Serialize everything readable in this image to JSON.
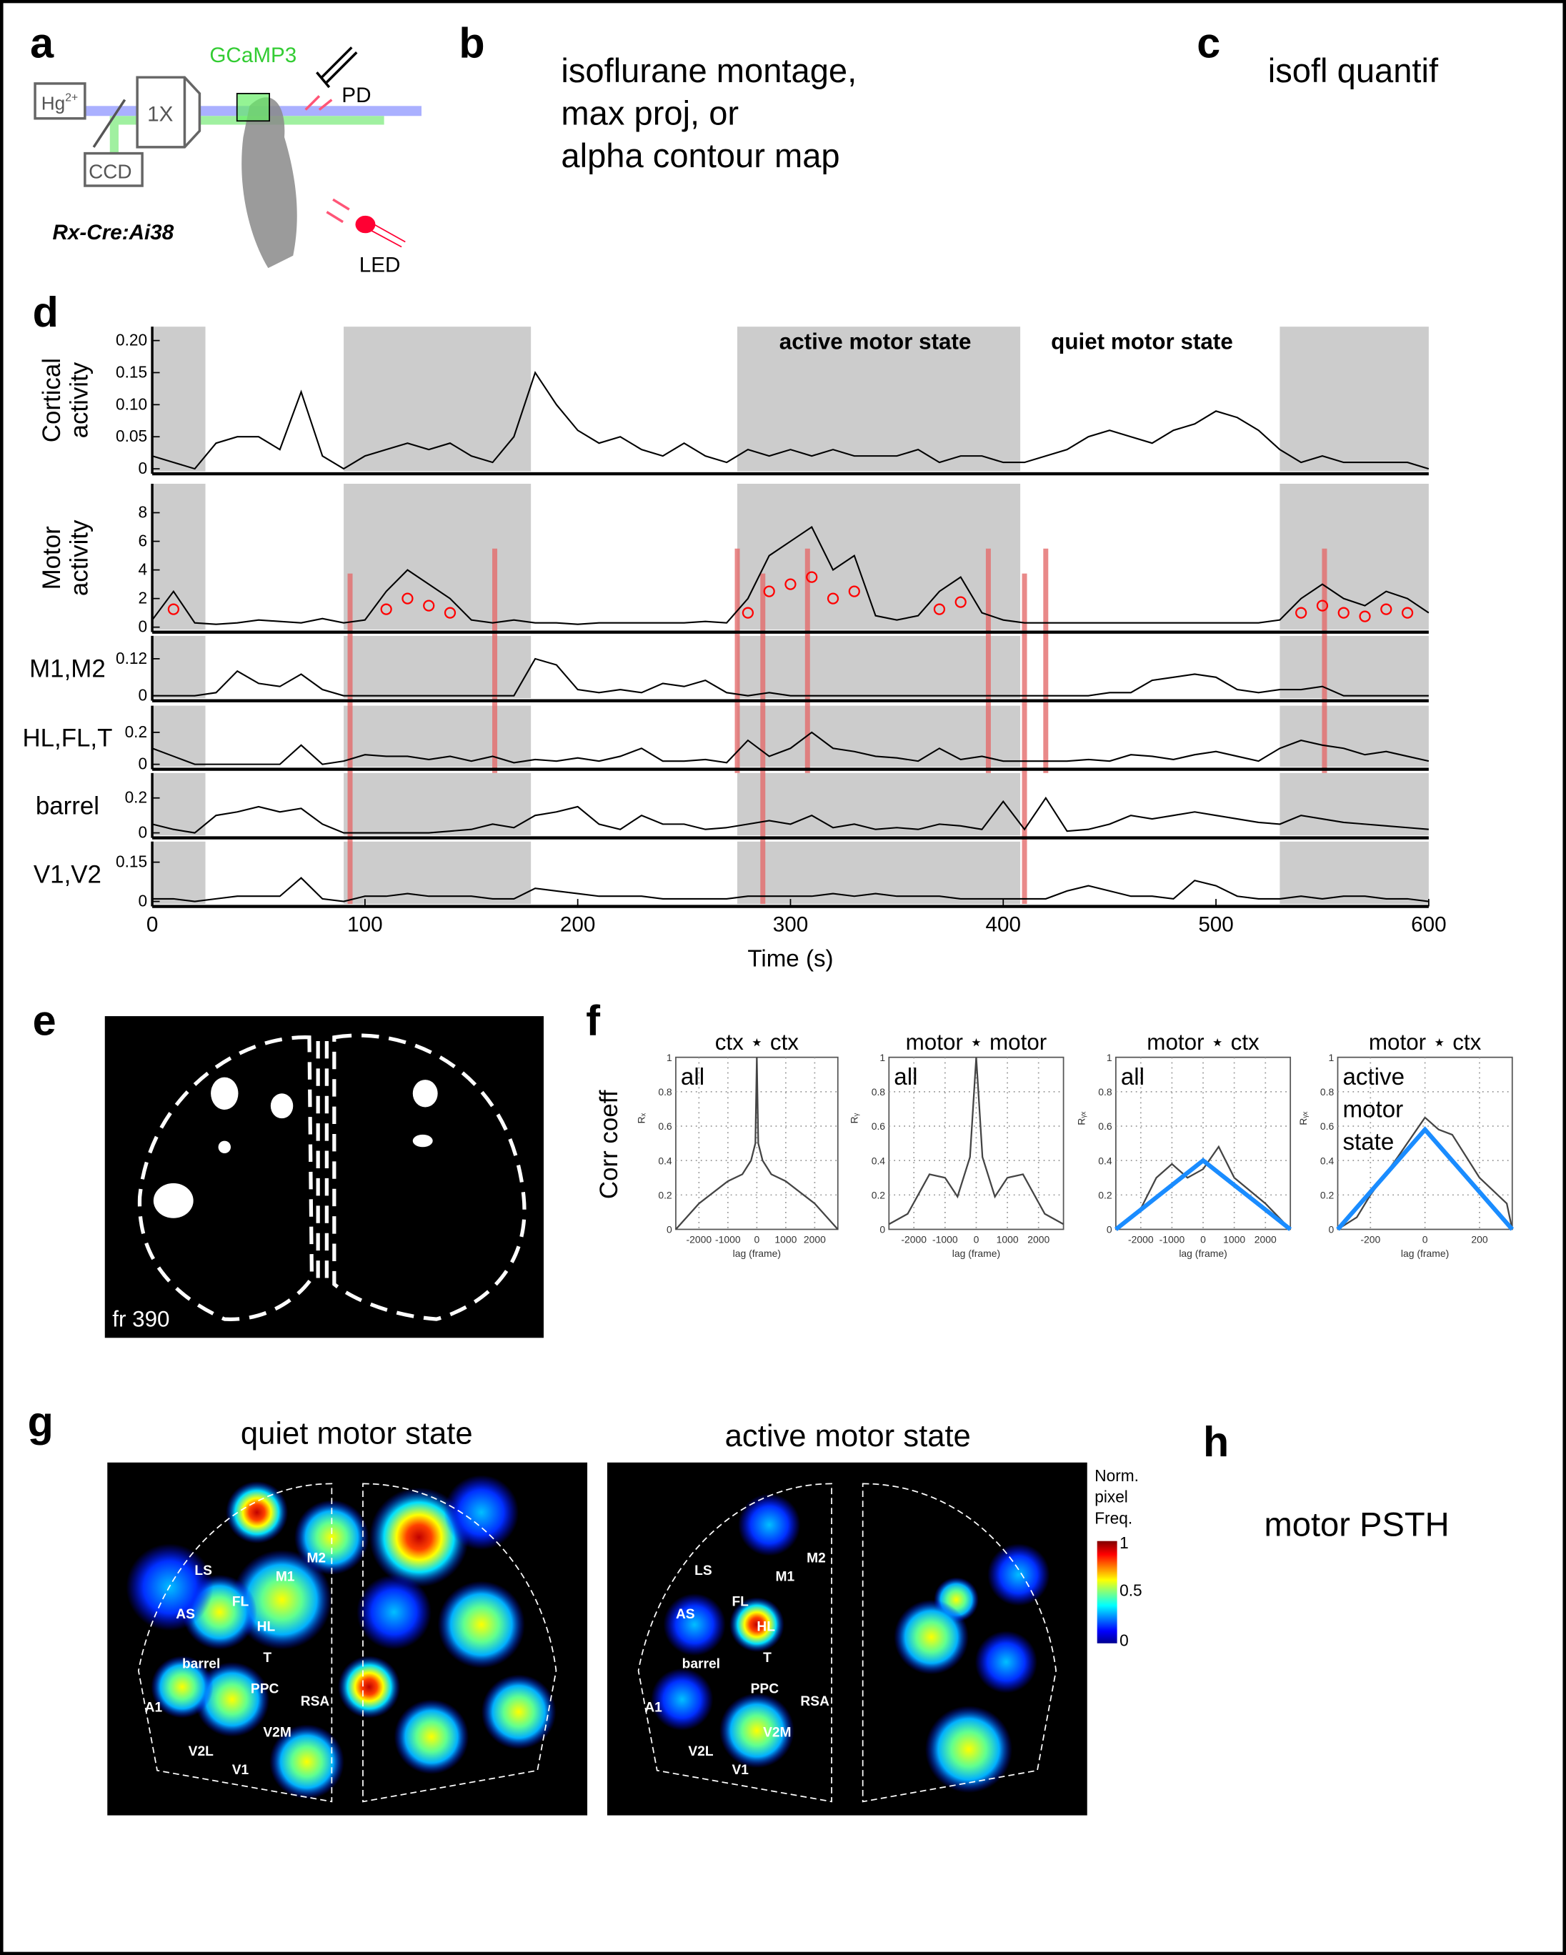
{
  "panel_labels": {
    "a": "a",
    "b": "b",
    "c": "c",
    "d": "d",
    "e": "e",
    "f": "f",
    "g": "g",
    "h": "h"
  },
  "panel_a": {
    "hg": "Hg",
    "hg_sup": "2+",
    "objective": "1X",
    "camera": "CCD",
    "indicator": "GCaMP3",
    "detector": "PD",
    "led": "LED",
    "strain": "Rx-Cre:Ai38",
    "colors": {
      "indicator": "#33cc33",
      "arrows": "#ff5577",
      "led": "#ff0033",
      "blue_beam": "#aab0ff",
      "green_beam": "#a0f0a0"
    }
  },
  "panel_b": {
    "lines": [
      "isoflurane montage,",
      "max proj, or",
      "alpha contour map"
    ]
  },
  "panel_c": {
    "text": "isofl quantif"
  },
  "panel_h": {
    "text": "motor PSTH"
  },
  "chart_data": [
    {
      "type": "line",
      "panel": "d",
      "xlabel": "Time (s)",
      "xlim": [
        0,
        600
      ],
      "xticks": [
        "0",
        "100",
        "200",
        "300",
        "400",
        "500",
        "600"
      ],
      "x_step": 10,
      "annotations": [
        "active motor state",
        "quiet motor state"
      ],
      "shaded_intervals": [
        [
          0,
          25
        ],
        [
          90,
          178
        ],
        [
          275,
          408
        ],
        [
          530,
          600
        ]
      ],
      "event_markers_s": [
        93,
        161,
        275,
        287,
        308,
        393,
        410,
        420,
        551
      ],
      "colors": {
        "shade": "#cccccc",
        "trace": "#000000",
        "events": "#e36b6b",
        "motor_onsets": "#ff0000"
      },
      "series": [
        {
          "name": "Cortical activity",
          "ylabel": [
            "Cortical",
            "activity"
          ],
          "ylim": [
            0,
            0.21
          ],
          "yticks": [
            "0",
            "0.05",
            "0.10",
            "0.15",
            "0.20"
          ],
          "ytick_values": [
            0,
            0.05,
            0.1,
            0.15,
            0.2
          ],
          "values": [
            0.02,
            0.01,
            0,
            0.04,
            0.05,
            0.05,
            0.03,
            0.12,
            0.02,
            0,
            0.02,
            0.03,
            0.04,
            0.03,
            0.04,
            0.02,
            0.01,
            0.05,
            0.15,
            0.1,
            0.06,
            0.04,
            0.05,
            0.03,
            0.02,
            0.04,
            0.02,
            0.01,
            0.03,
            0.02,
            0.03,
            0.02,
            0.03,
            0.02,
            0.02,
            0.02,
            0.03,
            0.01,
            0.02,
            0.02,
            0.01,
            0.01,
            0.02,
            0.03,
            0.05,
            0.06,
            0.05,
            0.04,
            0.06,
            0.07,
            0.09,
            0.08,
            0.06,
            0.03,
            0.01,
            0.02,
            0.01,
            0.01,
            0.01,
            0.01,
            0
          ]
        },
        {
          "name": "Motor activity",
          "ylabel": [
            "Motor",
            "activity"
          ],
          "ylim": [
            0,
            9.5
          ],
          "yticks": [
            "0",
            "2",
            "4",
            "6",
            "8"
          ],
          "ytick_values": [
            0,
            2,
            4,
            6,
            8
          ],
          "values": [
            0.5,
            2.5,
            0.3,
            0.2,
            0.3,
            0.5,
            0.4,
            0.3,
            0.6,
            0.3,
            0.5,
            2.5,
            4,
            3,
            2,
            0.5,
            0.3,
            0.5,
            0.3,
            0.3,
            0.2,
            0.3,
            0.3,
            0.3,
            0.3,
            0.3,
            0.4,
            0.3,
            2,
            5,
            6,
            7,
            4,
            5,
            0.8,
            0.5,
            0.8,
            2.5,
            3.5,
            1,
            0.5,
            0.3,
            0.3,
            0.3,
            0.3,
            0.3,
            0.3,
            0.3,
            0.3,
            0.3,
            0.3,
            0.3,
            0.3,
            0.5,
            2,
            3,
            2,
            1.5,
            2.5,
            2,
            1
          ]
        },
        {
          "name": "M1,M2",
          "ylabel": [
            "M1,M2"
          ],
          "ylim": [
            0,
            0.17
          ],
          "yticks": [
            "0",
            "0.12"
          ],
          "ytick_values": [
            0,
            0.12
          ],
          "values": [
            0,
            0,
            0,
            0.01,
            0.08,
            0.04,
            0.03,
            0.07,
            0.02,
            0,
            0,
            0,
            0,
            0,
            0,
            0,
            0,
            0,
            0.12,
            0.1,
            0.02,
            0.01,
            0.02,
            0.01,
            0.04,
            0.03,
            0.05,
            0.01,
            0,
            0.01,
            0,
            0,
            0,
            0,
            0,
            0,
            0,
            0,
            0,
            0,
            0,
            0,
            0,
            0,
            0,
            0.01,
            0.01,
            0.05,
            0.06,
            0.07,
            0.06,
            0.02,
            0.01,
            0.02,
            0.02,
            0.03,
            0,
            0,
            0,
            0,
            0
          ]
        },
        {
          "name": "HL,FL,T",
          "ylabel": [
            "HL,FL,T"
          ],
          "ylim": [
            0,
            0.32
          ],
          "yticks": [
            "0",
            "0.2"
          ],
          "ytick_values": [
            0,
            0.2
          ],
          "values": [
            0.1,
            0.05,
            0,
            0,
            0,
            0,
            0,
            0.12,
            0,
            0.02,
            0.06,
            0.05,
            0.05,
            0.03,
            0.05,
            0.02,
            0.05,
            0.01,
            0.03,
            0.02,
            0.04,
            0.02,
            0.05,
            0.1,
            0.02,
            0.02,
            0.03,
            0.01,
            0.15,
            0.05,
            0.1,
            0.2,
            0.1,
            0.08,
            0.05,
            0.04,
            0.02,
            0.1,
            0.03,
            0.05,
            0.02,
            0.02,
            0.02,
            0.02,
            0.03,
            0.02,
            0.06,
            0.05,
            0.03,
            0.06,
            0.08,
            0.05,
            0.02,
            0.1,
            0.15,
            0.12,
            0.1,
            0.06,
            0.08,
            0.05,
            0.02
          ]
        },
        {
          "name": "barrel",
          "ylabel": [
            "barrel"
          ],
          "ylim": [
            0,
            0.3
          ],
          "yticks": [
            "0",
            "0.2"
          ],
          "ytick_values": [
            0,
            0.2
          ],
          "values": [
            0.05,
            0.02,
            0,
            0.1,
            0.12,
            0.15,
            0.12,
            0.14,
            0.05,
            0,
            0,
            0,
            0,
            0,
            0.01,
            0.02,
            0.05,
            0.03,
            0.1,
            0.12,
            0.15,
            0.05,
            0.02,
            0.1,
            0.05,
            0.05,
            0.02,
            0.03,
            0.05,
            0.07,
            0.05,
            0.1,
            0.03,
            0.05,
            0.02,
            0.03,
            0.02,
            0.05,
            0.04,
            0.02,
            0.18,
            0.02,
            0.2,
            0.01,
            0.02,
            0.05,
            0.1,
            0.08,
            0.1,
            0.12,
            0.1,
            0.08,
            0.06,
            0.05,
            0.1,
            0.08,
            0.06,
            0.05,
            0.04,
            0.03,
            0.02
          ]
        },
        {
          "name": "V1,V2",
          "ylabel": [
            "V1,V2"
          ],
          "ylim": [
            0,
            0.2
          ],
          "yticks": [
            "0",
            "0.15"
          ],
          "ytick_values": [
            0,
            0.15
          ],
          "values": [
            0.01,
            0.01,
            0,
            0.01,
            0.02,
            0.02,
            0.02,
            0.09,
            0.01,
            0,
            0.02,
            0.02,
            0.03,
            0.02,
            0.02,
            0.02,
            0.01,
            0.01,
            0.05,
            0.04,
            0.03,
            0.02,
            0.02,
            0.02,
            0.01,
            0.01,
            0.01,
            0.01,
            0.02,
            0.02,
            0.02,
            0.02,
            0.03,
            0.02,
            0.03,
            0.02,
            0.02,
            0.02,
            0.01,
            0.01,
            0.01,
            0.01,
            0.01,
            0.04,
            0.06,
            0.04,
            0.02,
            0.02,
            0.01,
            0.08,
            0.06,
            0.02,
            0.01,
            0.01,
            0.02,
            0.01,
            0.02,
            0.02,
            0.01,
            0.01,
            0
          ]
        }
      ]
    },
    {
      "type": "line",
      "panel": "f",
      "ylabel": "Corr coeff",
      "ylim": [
        0,
        1
      ],
      "yticks": [
        "0",
        "0.2",
        "0.4",
        "0.6",
        "0.8",
        "1"
      ],
      "grid": true,
      "colors": {
        "observed": "#444444",
        "fit": "#1a8cff"
      },
      "subplots": [
        {
          "title": "ctx ⋆ ctx",
          "inset": [
            "all"
          ],
          "sublabel": "Rₓ",
          "xlabel": "lag (frame)",
          "xlim": [
            -2800,
            2800
          ],
          "xticks": [
            "-2000",
            "-1000",
            "0",
            "1000",
            "2000"
          ],
          "xtick_values": [
            -2000,
            -1000,
            0,
            1000,
            2000
          ],
          "series": [
            {
              "x": [
                -2800,
                -2000,
                -1000,
                -500,
                -200,
                -50,
                0,
                50,
                200,
                500,
                1000,
                2000,
                2800
              ],
              "y": [
                0,
                0.15,
                0.28,
                0.32,
                0.4,
                0.5,
                1,
                0.5,
                0.4,
                0.32,
                0.28,
                0.15,
                0
              ],
              "style": "observed"
            }
          ]
        },
        {
          "title": "motor ⋆ motor",
          "inset": [
            "all"
          ],
          "sublabel": "Rᵧ",
          "xlabel": "lag (frame)",
          "xlim": [
            -2800,
            2800
          ],
          "xticks": [
            "-2000",
            "-1000",
            "0",
            "1000",
            "2000"
          ],
          "xtick_values": [
            -2000,
            -1000,
            0,
            1000,
            2000
          ],
          "series": [
            {
              "x": [
                -2800,
                -2200,
                -1500,
                -1000,
                -600,
                -200,
                0,
                200,
                600,
                1000,
                1500,
                2200,
                2800
              ],
              "y": [
                0.03,
                0.09,
                0.32,
                0.3,
                0.19,
                0.42,
                1,
                0.42,
                0.19,
                0.3,
                0.32,
                0.09,
                0.03
              ],
              "style": "observed"
            }
          ]
        },
        {
          "title": "motor ⋆ ctx",
          "inset": [
            "all"
          ],
          "sublabel": "Rᵧₓ",
          "xlabel": "lag (frame)",
          "xlim": [
            -2800,
            2800
          ],
          "xticks": [
            "-2000",
            "-1000",
            "0",
            "1000",
            "2000"
          ],
          "xtick_values": [
            -2000,
            -1000,
            0,
            1000,
            2000
          ],
          "series": [
            {
              "x": [
                -2800,
                -2000,
                -1500,
                -1000,
                -500,
                0,
                500,
                1000,
                2000,
                2800
              ],
              "y": [
                0,
                0.12,
                0.3,
                0.38,
                0.3,
                0.35,
                0.48,
                0.3,
                0.15,
                0
              ],
              "style": "observed"
            },
            {
              "x": [
                -2800,
                0,
                2800
              ],
              "y": [
                0,
                0.4,
                0
              ],
              "style": "fit"
            }
          ]
        },
        {
          "title": "motor ⋆ ctx",
          "inset": [
            "active",
            "motor",
            "state"
          ],
          "sublabel": "Rᵧₓ",
          "xlabel": "lag (frame)",
          "xlim": [
            -320,
            320
          ],
          "xticks": [
            "-200",
            "0",
            "200"
          ],
          "xtick_values": [
            -200,
            0,
            200
          ],
          "series": [
            {
              "x": [
                -320,
                -250,
                -200,
                -100,
                0,
                50,
                100,
                200,
                300,
                320
              ],
              "y": [
                0,
                0.07,
                0.2,
                0.42,
                0.65,
                0.58,
                0.55,
                0.3,
                0.15,
                0
              ],
              "style": "observed"
            },
            {
              "x": [
                -320,
                0,
                320
              ],
              "y": [
                0,
                0.58,
                0
              ],
              "style": "fit"
            }
          ]
        }
      ]
    }
  ],
  "panel_e": {
    "frame_label": "fr 390"
  },
  "panel_g": {
    "titles": [
      "quiet motor state",
      "active motor state"
    ],
    "regions": [
      "LS",
      "M2",
      "M1",
      "AS",
      "FL",
      "HL",
      "T",
      "barrel",
      "PPC",
      "RSA",
      "A1",
      "V2L",
      "V2M",
      "V1"
    ],
    "colorbar": {
      "title": [
        "Norm.",
        "pixel",
        "Freq."
      ],
      "ticks": [
        "1",
        "0.5",
        "0"
      ],
      "colormap": "jet"
    }
  }
}
